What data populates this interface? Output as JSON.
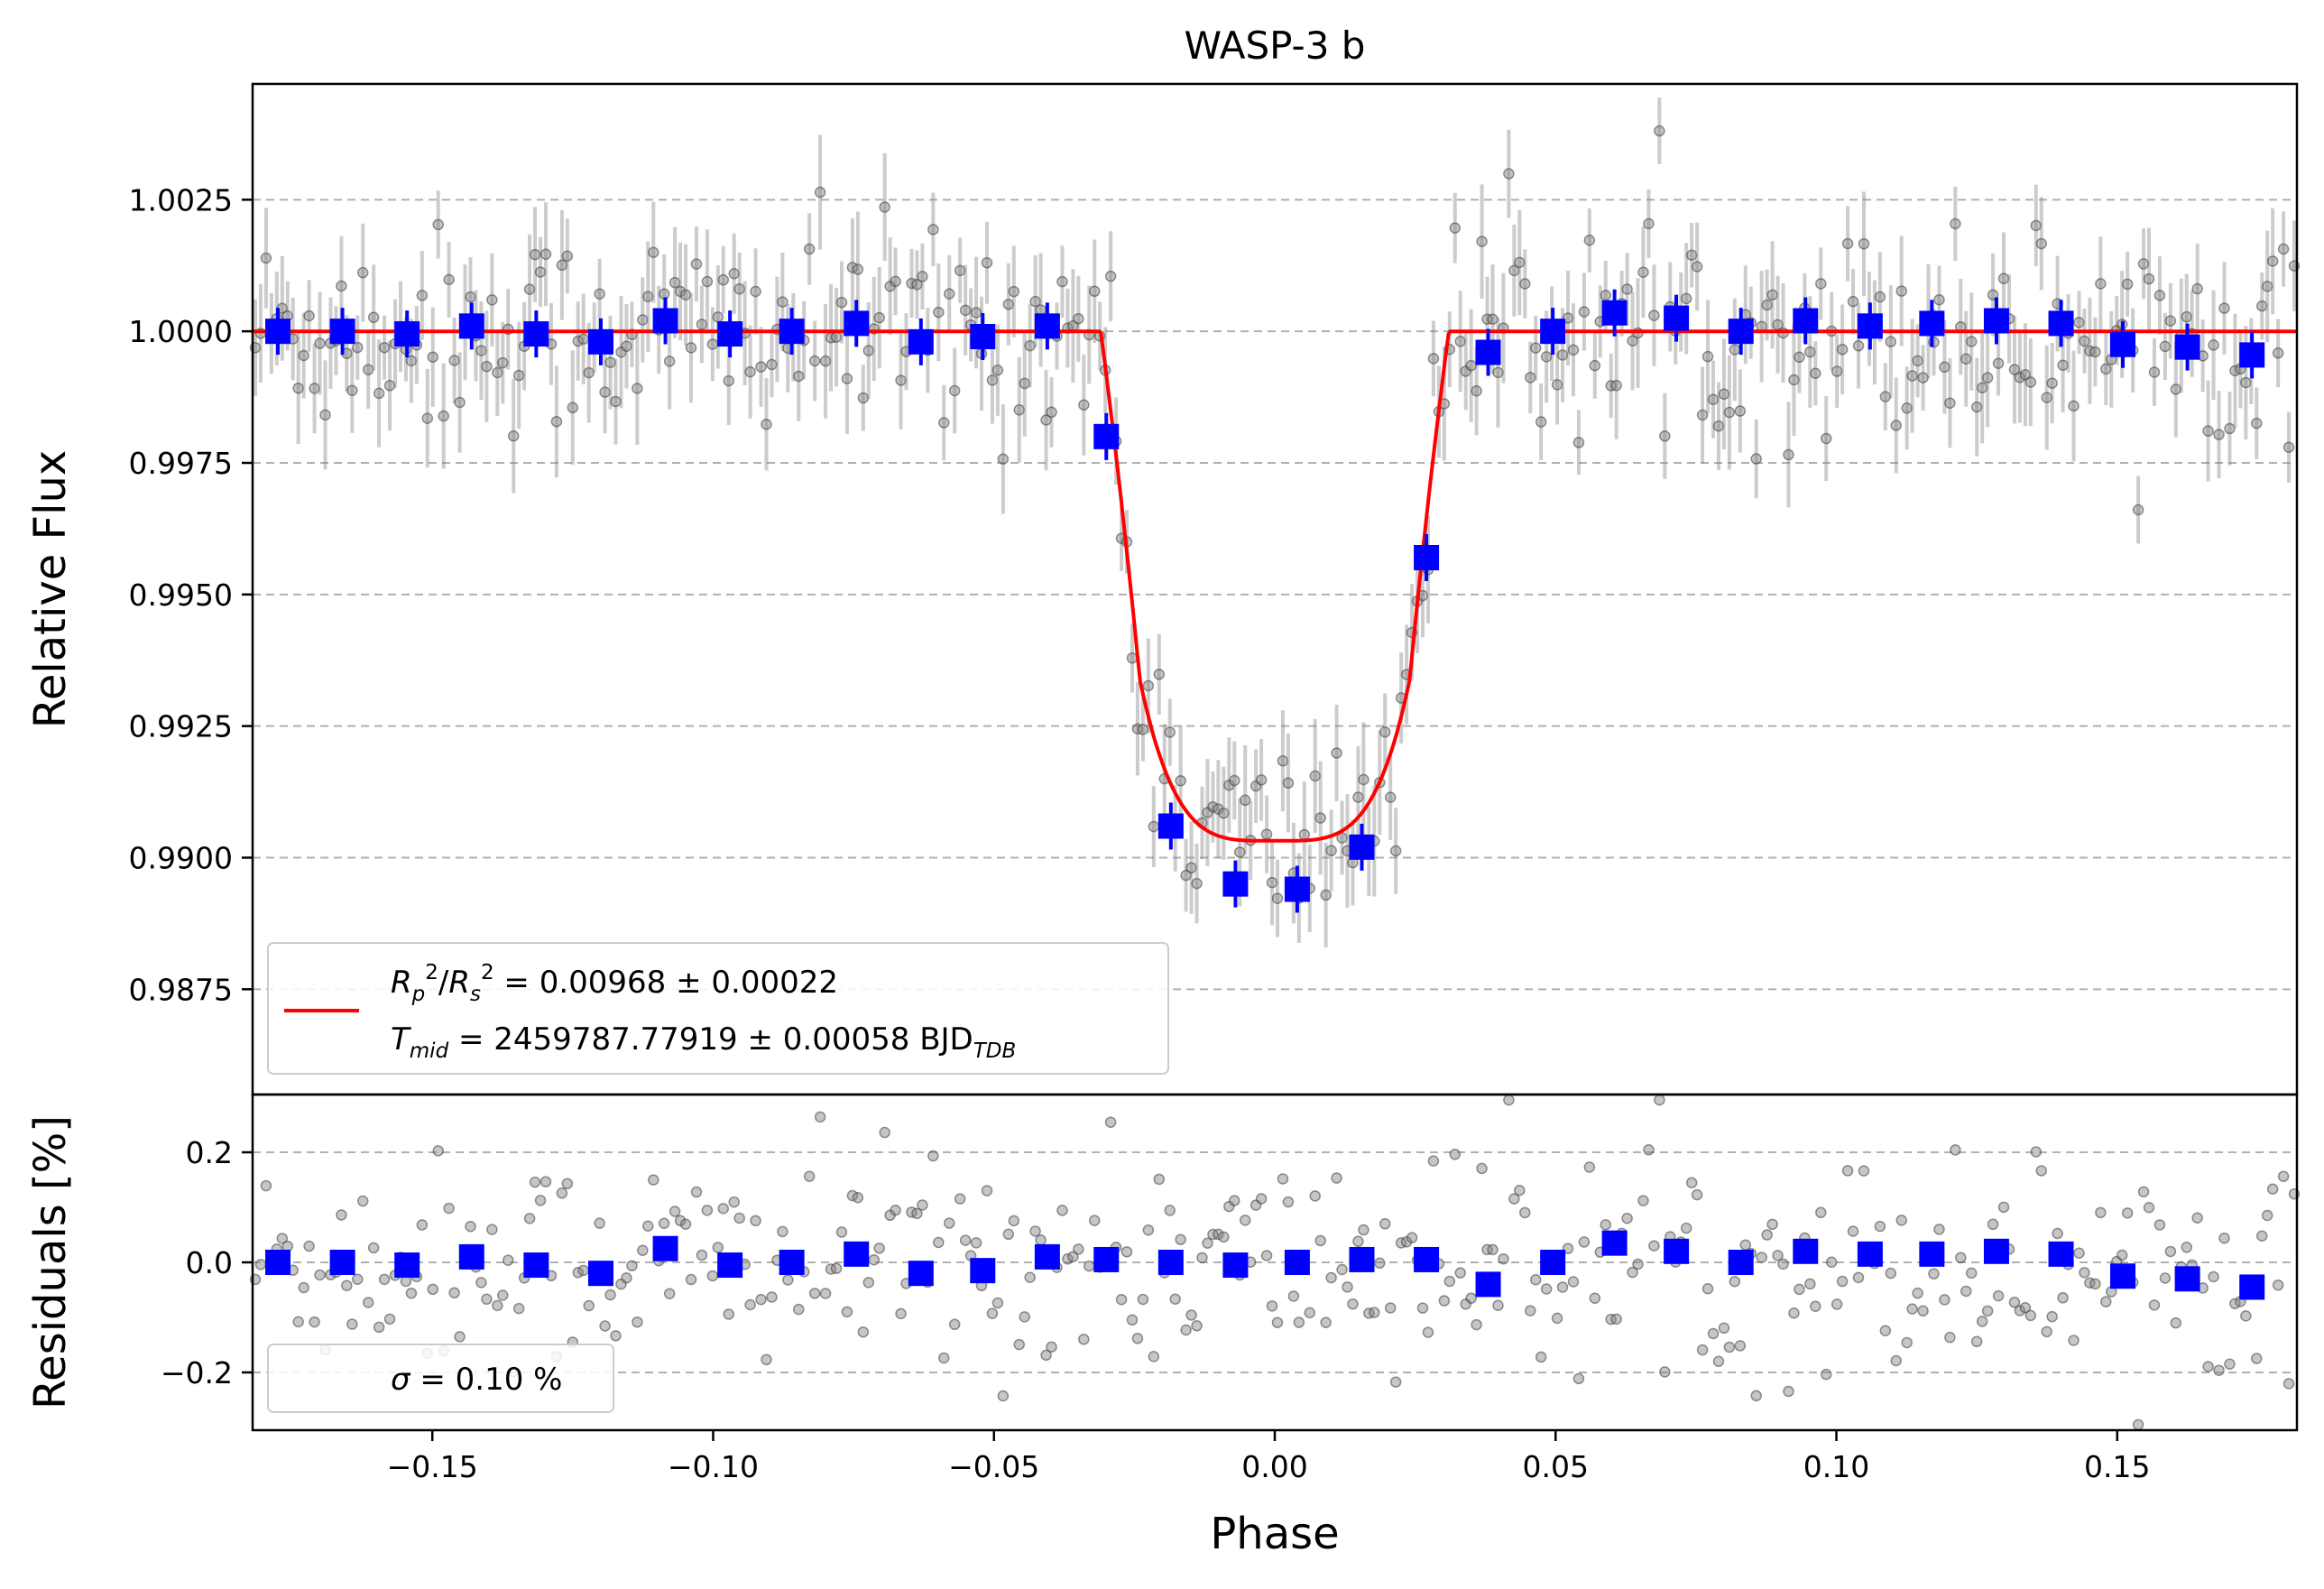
{
  "figure": {
    "title": "WASP-3 b"
  },
  "chart_data": [
    {
      "type": "scatter",
      "panel": "light-curve",
      "title": "WASP-3 b",
      "xlabel": "",
      "ylabel": "Relative Flux",
      "xlim": [
        -0.182,
        0.182
      ],
      "ylim": [
        0.9855,
        1.0047
      ],
      "y_ticks": [
        0.9875,
        0.99,
        0.9925,
        0.995,
        0.9975,
        1.0,
        1.0025
      ],
      "y_tick_labels": [
        "0.9875",
        "0.9900",
        "0.9925",
        "0.9950",
        "0.9975",
        "1.0000",
        "1.0025"
      ],
      "grid": "horizontal dashed",
      "legend": {
        "placement": "lower-left",
        "line1": "R_p²/R_s² = 0.00968 ± 0.00022",
        "line2": "T_mid = 2459787.77919 ± 0.00058 BJD_TDB"
      },
      "model": {
        "name": "transit fit",
        "color": "#ff0000",
        "depth": 0.00968,
        "t_total": 0.031,
        "t_flat": 0.024,
        "baseline": 1.0
      },
      "raw_points": {
        "color": "#808080",
        "x_range": [
          -0.182,
          0.182
        ],
        "count": 380,
        "scatter_sigma": 0.001
      },
      "binned_points": {
        "color": "#0000ff",
        "x": [
          -0.1775,
          -0.166,
          -0.1545,
          -0.143,
          -0.1315,
          -0.12,
          -0.1085,
          -0.097,
          -0.086,
          -0.0745,
          -0.063,
          -0.052,
          -0.0405,
          -0.03,
          -0.0185,
          -0.007,
          0.004,
          0.0155,
          0.027,
          0.038,
          0.0495,
          0.0605,
          0.0715,
          0.083,
          0.0945,
          0.106,
          0.117,
          0.1285,
          0.14,
          0.151,
          0.1625,
          0.174
        ],
        "y": [
          1.0,
          1.0,
          0.99995,
          1.0001,
          0.99995,
          0.9998,
          1.0002,
          0.99995,
          1.0,
          1.00015,
          0.9998,
          0.9999,
          1.0001,
          0.998,
          0.9906,
          0.9895,
          0.9894,
          0.9902,
          0.9957,
          0.9996,
          1.0,
          1.00035,
          1.00025,
          1.0,
          1.0002,
          1.0001,
          1.00015,
          1.0002,
          1.00015,
          0.99975,
          0.9997,
          0.99955
        ]
      }
    },
    {
      "type": "scatter",
      "panel": "residuals",
      "xlabel": "Phase",
      "ylabel": "Residuals [%]",
      "xlim": [
        -0.182,
        0.182
      ],
      "ylim": [
        -0.305,
        0.305
      ],
      "x_ticks": [
        -0.15,
        -0.1,
        -0.05,
        0.0,
        0.05,
        0.1,
        0.15
      ],
      "x_tick_labels": [
        "−0.15",
        "−0.10",
        "−0.05",
        "0.00",
        "0.05",
        "0.10",
        "0.15"
      ],
      "y_ticks": [
        -0.2,
        0.0,
        0.2
      ],
      "y_tick_labels": [
        "−0.2",
        "0.0",
        "0.2"
      ],
      "grid": "horizontal dashed",
      "legend": {
        "placement": "lower-left",
        "label": "σ = 0.10 %"
      },
      "binned_points": {
        "color": "#0000ff",
        "x": [
          -0.1775,
          -0.166,
          -0.1545,
          -0.143,
          -0.1315,
          -0.12,
          -0.1085,
          -0.097,
          -0.086,
          -0.0745,
          -0.063,
          -0.052,
          -0.0405,
          -0.03,
          -0.0185,
          -0.007,
          0.004,
          0.0155,
          0.027,
          0.038,
          0.0495,
          0.0605,
          0.0715,
          0.083,
          0.0945,
          0.106,
          0.117,
          0.1285,
          0.14,
          0.151,
          0.1625,
          0.174
        ],
        "y": [
          0.0,
          0.0,
          -0.005,
          0.01,
          -0.005,
          -0.02,
          0.025,
          -0.005,
          0.0,
          0.015,
          -0.02,
          -0.015,
          0.01,
          0.005,
          0.0,
          -0.005,
          0.0,
          0.005,
          0.005,
          -0.04,
          0.0,
          0.035,
          0.02,
          0.0,
          0.02,
          0.015,
          0.015,
          0.02,
          0.015,
          -0.025,
          -0.03,
          -0.045
        ]
      },
      "raw_points": {
        "color": "#808080",
        "count": 380,
        "scatter_sigma": 0.1
      }
    }
  ]
}
